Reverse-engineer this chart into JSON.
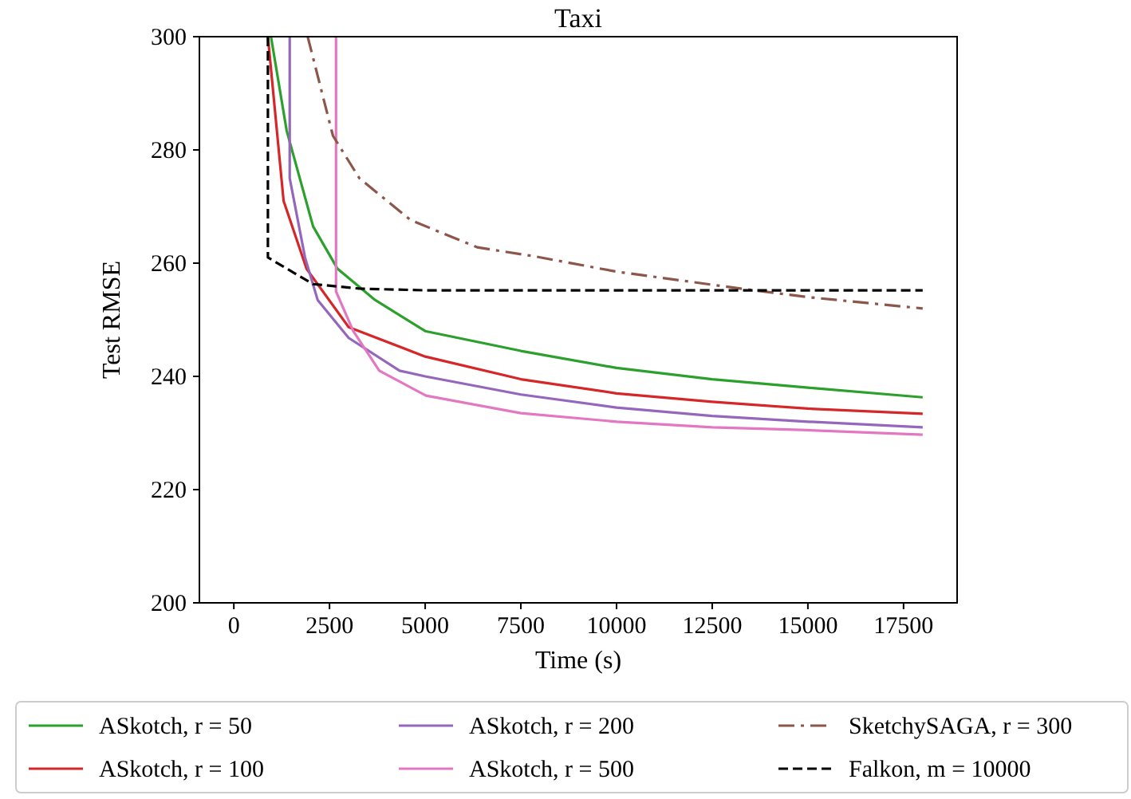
{
  "chart_data": {
    "type": "line",
    "title": "Taxi",
    "xlabel": "Time (s)",
    "ylabel": "Test RMSE",
    "xlim": [
      -900,
      18900
    ],
    "ylim": [
      200,
      300
    ],
    "xticks": [
      0,
      2500,
      5000,
      7500,
      10000,
      12500,
      15000,
      17500
    ],
    "yticks": [
      200,
      220,
      240,
      260,
      280,
      300
    ],
    "grid": false,
    "legend": "bottom",
    "marker": "none",
    "series": [
      {
        "name": "ASkotch, r = 50",
        "color": "#2ca02c",
        "line_style": "solid",
        "x": [
          970,
          1380,
          2070,
          2710,
          3690,
          5000,
          7500,
          10000,
          12500,
          15000,
          18000
        ],
        "values": [
          300,
          283.4,
          266.5,
          259,
          253.5,
          248,
          244.5,
          241.5,
          239.5,
          238,
          236.3
        ]
      },
      {
        "name": "ASkotch, r = 100",
        "color": "#d62728",
        "line_style": "solid",
        "x": [
          890,
          1300,
          1900,
          3000,
          5000,
          7500,
          10000,
          12500,
          15000,
          18000
        ],
        "values": [
          300,
          271,
          259,
          248.7,
          243.5,
          239.5,
          237,
          235.5,
          234.3,
          233.4
        ]
      },
      {
        "name": "ASkotch, r = 200",
        "color": "#9467bd",
        "line_style": "solid",
        "x": [
          1460,
          1460,
          1860,
          2190,
          3000,
          4330,
          5000,
          7500,
          10000,
          12500,
          15000,
          18000
        ],
        "values": [
          300,
          275,
          261,
          253.5,
          246.8,
          241,
          240,
          236.8,
          234.5,
          233,
          232,
          231
        ]
      },
      {
        "name": "ASkotch, r = 500",
        "color": "#e377c2",
        "line_style": "solid",
        "x": [
          2670,
          2670,
          3120,
          3800,
          5020,
          7500,
          10000,
          12500,
          15000,
          18000
        ],
        "values": [
          300,
          255,
          248,
          241,
          236.6,
          233.5,
          232,
          231,
          230.5,
          229.7
        ]
      },
      {
        "name": "SketchySAGA, r = 300",
        "color": "#8c564b",
        "line_style": "dashdot",
        "x": [
          1930,
          2590,
          3280,
          4620,
          6360,
          7860,
          10000,
          13240,
          15000,
          18000
        ],
        "values": [
          300,
          282.5,
          275,
          267.6,
          262.8,
          261.2,
          258.5,
          255.5,
          254,
          252
        ]
      },
      {
        "name": "Falkon, m = 10000",
        "color": "#000000",
        "line_style": "dashed",
        "x": [
          890,
          890,
          2070,
          3280,
          5000,
          18000
        ],
        "values": [
          300,
          261,
          256.3,
          255.5,
          255.2,
          255.2
        ]
      }
    ]
  }
}
